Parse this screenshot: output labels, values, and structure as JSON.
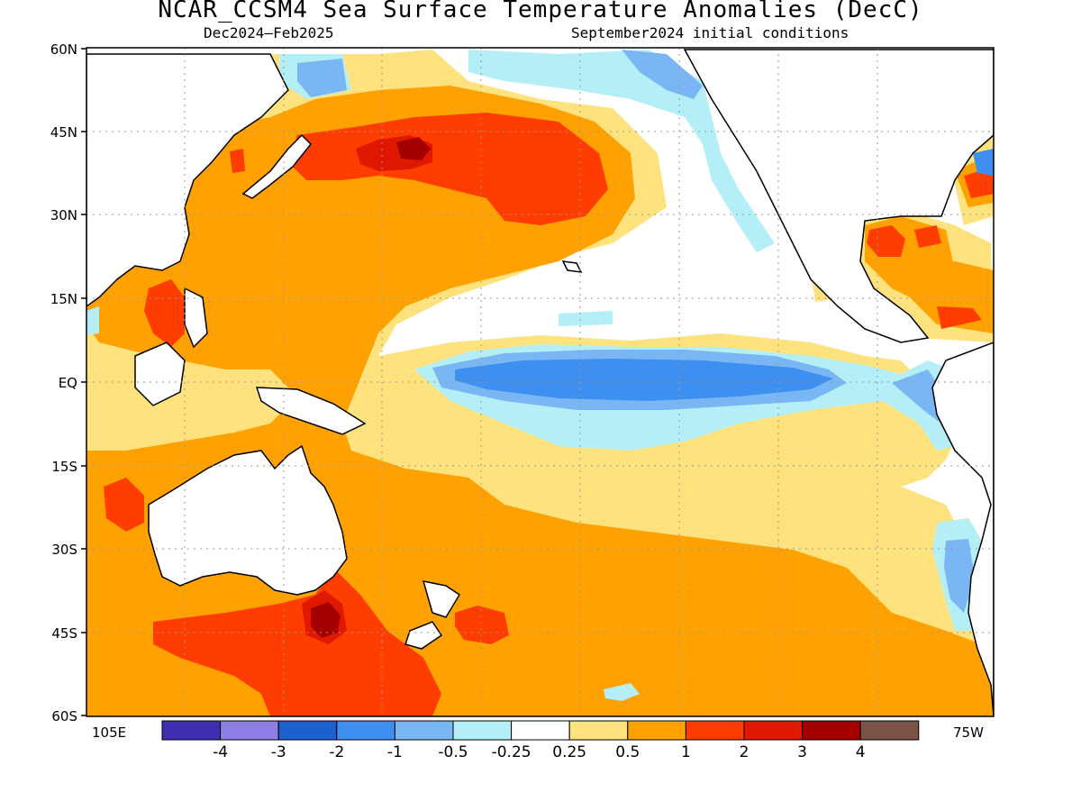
{
  "title": "NCAR_CCSM4 Sea Surface Temperature Anomalies (DecC)",
  "subtitle_left": "Dec2024–Feb2025",
  "subtitle_right": "September2024 initial conditions",
  "lat_labels": [
    "60N",
    "45N",
    "30N",
    "15N",
    "EQ",
    "15S",
    "30S",
    "45S",
    "60S"
  ],
  "lon_labels": {
    "west_edge": "105E",
    "east_edge": "75W"
  },
  "colorbar": {
    "colors": [
      "#3f2fb0",
      "#8d7ee6",
      "#1e5fd0",
      "#3d8ff0",
      "#7ab6f4",
      "#b4eef6",
      "#ffffff",
      "#fee27d",
      "#ffa100",
      "#ff3d00",
      "#e11800",
      "#a50000",
      "#7a5246"
    ],
    "labels": [
      "-4",
      "-3",
      "-2",
      "-1",
      "-0.5",
      "-0.25",
      "0.25",
      "0.5",
      "1",
      "2",
      "3",
      "4"
    ]
  }
}
